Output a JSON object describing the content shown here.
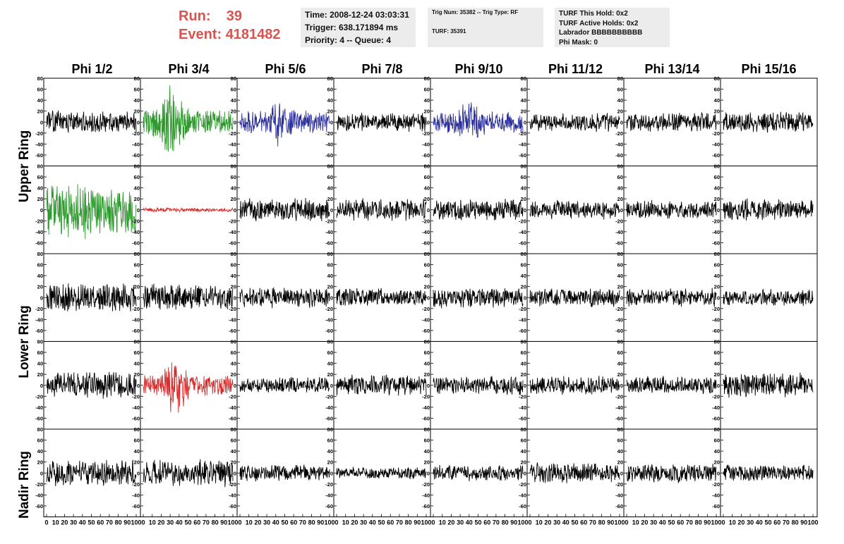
{
  "header": {
    "run_label": "Run:",
    "run_value": "39",
    "event_label": "Event:",
    "event_value": "4181482",
    "time": "Time: 2008-12-24 03:03:31",
    "trigger": "Trigger: 638.171894 ms",
    "priority": "Priority: 4 -- Queue: 4",
    "trig_num": "Trig Num: 35382 -- Trig Type: RF",
    "turf": "TURF: 35391",
    "turf_hold": "TURF This Hold: 0x2",
    "turf_active": "TURF Active Holds: 0x2",
    "labrador": "Labrador BBBBBBBBBB",
    "phi_mask": "Phi Mask: 0"
  },
  "chart_data": {
    "type": "line",
    "columns": [
      "Phi 1/2",
      "Phi 3/4",
      "Phi 5/6",
      "Phi 7/8",
      "Phi 9/10",
      "Phi 11/12",
      "Phi 13/14",
      "Phi 15/16"
    ],
    "rows": [
      "Upper Ring",
      "Lower Ring",
      "Nadir Ring"
    ],
    "ylim": [
      -80,
      80
    ],
    "xlim": [
      0,
      100
    ],
    "yticks": [
      -60,
      -40,
      -20,
      0,
      20,
      40,
      60,
      80
    ],
    "xticks": [
      0,
      10,
      20,
      30,
      40,
      50,
      60,
      70,
      80,
      90,
      100
    ],
    "colors": {
      "black": "#000000",
      "green": "#2e9a2e",
      "blue": "#2b2f9c",
      "red": "#d42a2a"
    },
    "panels": [
      {
        "row": 0,
        "col": 0,
        "color": "black",
        "amp": 22,
        "seed": 11
      },
      {
        "row": 0,
        "col": 1,
        "color": "green",
        "amp": 25,
        "seed": 12,
        "burst": 60,
        "burstAt": 32
      },
      {
        "row": 0,
        "col": 2,
        "color": "blue",
        "amp": 22,
        "seed": 13,
        "burst": 28,
        "burstAt": 45
      },
      {
        "row": 0,
        "col": 3,
        "color": "black",
        "amp": 18,
        "seed": 14
      },
      {
        "row": 0,
        "col": 4,
        "color": "blue",
        "amp": 22,
        "seed": 15,
        "burst": 22,
        "burstAt": 40
      },
      {
        "row": 0,
        "col": 5,
        "color": "black",
        "amp": 18,
        "seed": 16
      },
      {
        "row": 0,
        "col": 6,
        "color": "black",
        "amp": 20,
        "seed": 17
      },
      {
        "row": 0,
        "col": 7,
        "color": "black",
        "amp": 20,
        "seed": 18
      },
      {
        "row": 1,
        "col": 0,
        "color": "green",
        "amp": 55,
        "seed": 21
      },
      {
        "row": 1,
        "col": 1,
        "color": "red",
        "amp": 4,
        "seed": 22
      },
      {
        "row": 1,
        "col": 2,
        "color": "black",
        "amp": 22,
        "seed": 23
      },
      {
        "row": 1,
        "col": 3,
        "color": "black",
        "amp": 22,
        "seed": 24
      },
      {
        "row": 1,
        "col": 4,
        "color": "black",
        "amp": 22,
        "seed": 25
      },
      {
        "row": 1,
        "col": 5,
        "color": "black",
        "amp": 18,
        "seed": 26
      },
      {
        "row": 1,
        "col": 6,
        "color": "black",
        "amp": 18,
        "seed": 27
      },
      {
        "row": 1,
        "col": 7,
        "color": "black",
        "amp": 22,
        "seed": 28
      },
      {
        "row": 2,
        "col": 0,
        "color": "black",
        "amp": 28,
        "seed": 31
      },
      {
        "row": 2,
        "col": 1,
        "color": "black",
        "amp": 26,
        "seed": 32
      },
      {
        "row": 2,
        "col": 2,
        "color": "black",
        "amp": 20,
        "seed": 33
      },
      {
        "row": 2,
        "col": 3,
        "color": "black",
        "amp": 18,
        "seed": 34
      },
      {
        "row": 2,
        "col": 4,
        "color": "black",
        "amp": 20,
        "seed": 35
      },
      {
        "row": 2,
        "col": 5,
        "color": "black",
        "amp": 18,
        "seed": 36
      },
      {
        "row": 2,
        "col": 6,
        "color": "black",
        "amp": 18,
        "seed": 37
      },
      {
        "row": 2,
        "col": 7,
        "color": "black",
        "amp": 16,
        "seed": 38
      },
      {
        "row": 3,
        "col": 0,
        "color": "black",
        "amp": 26,
        "seed": 41
      },
      {
        "row": 3,
        "col": 1,
        "color": "red",
        "amp": 20,
        "seed": 42,
        "burst": 40,
        "burstAt": 35
      },
      {
        "row": 3,
        "col": 2,
        "color": "black",
        "amp": 16,
        "seed": 43
      },
      {
        "row": 3,
        "col": 3,
        "color": "black",
        "amp": 20,
        "seed": 44
      },
      {
        "row": 3,
        "col": 4,
        "color": "black",
        "amp": 18,
        "seed": 45
      },
      {
        "row": 3,
        "col": 5,
        "color": "black",
        "amp": 18,
        "seed": 46
      },
      {
        "row": 3,
        "col": 6,
        "color": "black",
        "amp": 18,
        "seed": 47
      },
      {
        "row": 3,
        "col": 7,
        "color": "black",
        "amp": 24,
        "seed": 48
      },
      {
        "row": 4,
        "col": 0,
        "color": "black",
        "amp": 26,
        "seed": 51
      },
      {
        "row": 4,
        "col": 1,
        "color": "black",
        "amp": 26,
        "seed": 52
      },
      {
        "row": 4,
        "col": 2,
        "color": "black",
        "amp": 16,
        "seed": 53
      },
      {
        "row": 4,
        "col": 3,
        "color": "black",
        "amp": 12,
        "seed": 54
      },
      {
        "row": 4,
        "col": 4,
        "color": "black",
        "amp": 16,
        "seed": 55
      },
      {
        "row": 4,
        "col": 5,
        "color": "black",
        "amp": 20,
        "seed": 56
      },
      {
        "row": 4,
        "col": 6,
        "color": "black",
        "amp": 20,
        "seed": 57
      },
      {
        "row": 4,
        "col": 7,
        "color": "black",
        "amp": 16,
        "seed": 58
      }
    ]
  }
}
